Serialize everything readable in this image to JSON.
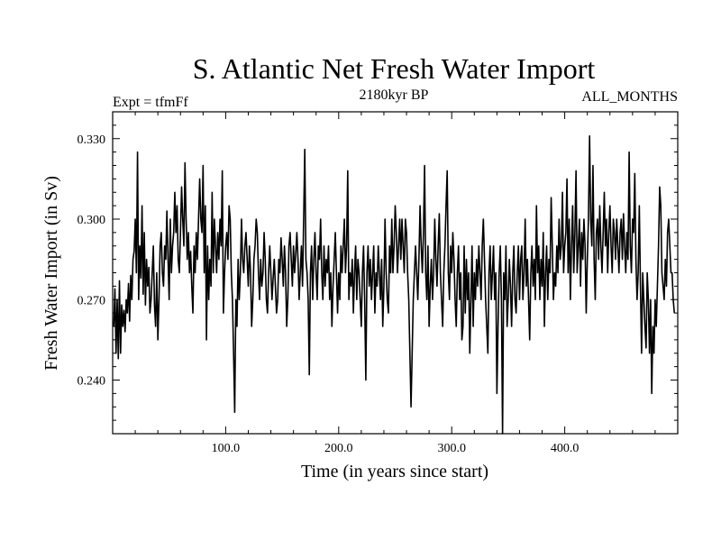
{
  "chart_data": {
    "type": "line",
    "title": "S. Atlantic Net Fresh Water Import",
    "subtitle_left": "Expt = tfmFf",
    "subtitle_center": "2180kyr BP",
    "subtitle_right": "ALL_MONTHS",
    "xlabel": "Time (in years since start)",
    "ylabel": "Fresh Water Import (in Sv)",
    "xlim": [
      0,
      500
    ],
    "ylim": [
      0.22,
      0.34
    ],
    "x_ticks": [
      100,
      200,
      300,
      400
    ],
    "x_tick_labels": [
      "100.0",
      "200.0",
      "300.0",
      "400.0"
    ],
    "y_ticks": [
      0.24,
      0.27,
      0.3,
      0.33
    ],
    "y_tick_labels": [
      "0.240",
      "0.270",
      "0.300",
      "0.330"
    ],
    "grid": false,
    "series": [
      {
        "name": "Net Fresh Water Import",
        "color": "#000000",
        "x_start": 1,
        "x_step": 1,
        "values": [
          0.26,
          0.274,
          0.25,
          0.27,
          0.248,
          0.277,
          0.25,
          0.268,
          0.26,
          0.266,
          0.258,
          0.27,
          0.265,
          0.276,
          0.262,
          0.279,
          0.27,
          0.285,
          0.288,
          0.3,
          0.28,
          0.325,
          0.27,
          0.29,
          0.278,
          0.305,
          0.272,
          0.295,
          0.268,
          0.285,
          0.275,
          0.282,
          0.265,
          0.27,
          0.28,
          0.29,
          0.268,
          0.26,
          0.28,
          0.255,
          0.27,
          0.29,
          0.295,
          0.28,
          0.275,
          0.29,
          0.285,
          0.303,
          0.285,
          0.27,
          0.3,
          0.28,
          0.29,
          0.295,
          0.31,
          0.295,
          0.305,
          0.285,
          0.28,
          0.295,
          0.312,
          0.3,
          0.29,
          0.321,
          0.3,
          0.285,
          0.295,
          0.28,
          0.288,
          0.275,
          0.265,
          0.29,
          0.28,
          0.295,
          0.285,
          0.3,
          0.315,
          0.3,
          0.295,
          0.32,
          0.28,
          0.305,
          0.255,
          0.29,
          0.27,
          0.285,
          0.275,
          0.31,
          0.28,
          0.3,
          0.29,
          0.28,
          0.295,
          0.285,
          0.3,
          0.29,
          0.318,
          0.265,
          0.28,
          0.29,
          0.295,
          0.285,
          0.305,
          0.3,
          0.28,
          0.27,
          0.25,
          0.228,
          0.27,
          0.26,
          0.285,
          0.27,
          0.28,
          0.3,
          0.285,
          0.28,
          0.29,
          0.295,
          0.285,
          0.275,
          0.29,
          0.28,
          0.26,
          0.27,
          0.285,
          0.29,
          0.3,
          0.295,
          0.28,
          0.27,
          0.285,
          0.275,
          0.28,
          0.295,
          0.285,
          0.27,
          0.265,
          0.28,
          0.29,
          0.28,
          0.27,
          0.278,
          0.285,
          0.275,
          0.265,
          0.27,
          0.285,
          0.28,
          0.293,
          0.285,
          0.275,
          0.29,
          0.28,
          0.26,
          0.27,
          0.29,
          0.295,
          0.285,
          0.275,
          0.29,
          0.28,
          0.287,
          0.295,
          0.285,
          0.27,
          0.28,
          0.29,
          0.275,
          0.3,
          0.326,
          0.285,
          0.28,
          0.27,
          0.242,
          0.28,
          0.29,
          0.27,
          0.285,
          0.295,
          0.28,
          0.27,
          0.29,
          0.285,
          0.3,
          0.28,
          0.27,
          0.29,
          0.275,
          0.285,
          0.28,
          0.29,
          0.27,
          0.28,
          0.26,
          0.275,
          0.285,
          0.295,
          0.28,
          0.265,
          0.28,
          0.27,
          0.29,
          0.28,
          0.29,
          0.3,
          0.28,
          0.29,
          0.318,
          0.27,
          0.28,
          0.275,
          0.285,
          0.265,
          0.28,
          0.29,
          0.27,
          0.285,
          0.28,
          0.27,
          0.26,
          0.28,
          0.29,
          0.27,
          0.24,
          0.28,
          0.29,
          0.275,
          0.285,
          0.27,
          0.28,
          0.29,
          0.265,
          0.28,
          0.275,
          0.29,
          0.28,
          0.27,
          0.285,
          0.26,
          0.275,
          0.3,
          0.28,
          0.27,
          0.265,
          0.29,
          0.28,
          0.3,
          0.28,
          0.29,
          0.305,
          0.295,
          0.28,
          0.29,
          0.3,
          0.285,
          0.3,
          0.29,
          0.28,
          0.3,
          0.295,
          0.28,
          0.27,
          0.25,
          0.23,
          0.25,
          0.27,
          0.28,
          0.29,
          0.28,
          0.27,
          0.285,
          0.305,
          0.29,
          0.28,
          0.295,
          0.32,
          0.28,
          0.27,
          0.29,
          0.26,
          0.275,
          0.285,
          0.27,
          0.28,
          0.3,
          0.285,
          0.275,
          0.29,
          0.302,
          0.28,
          0.27,
          0.26,
          0.28,
          0.29,
          0.305,
          0.318,
          0.28,
          0.27,
          0.29,
          0.28,
          0.295,
          0.285,
          0.27,
          0.26,
          0.28,
          0.29,
          0.27,
          0.28,
          0.255,
          0.26,
          0.29,
          0.265,
          0.285,
          0.27,
          0.28,
          0.25,
          0.27,
          0.29,
          0.26,
          0.28,
          0.27,
          0.285,
          0.275,
          0.29,
          0.28,
          0.27,
          0.29,
          0.3,
          0.285,
          0.27,
          0.26,
          0.25,
          0.28,
          0.29,
          0.27,
          0.28,
          0.29,
          0.27,
          0.28,
          0.235,
          0.26,
          0.28,
          0.29,
          0.27,
          0.22,
          0.28,
          0.27,
          0.29,
          0.26,
          0.27,
          0.285,
          0.275,
          0.26,
          0.28,
          0.29,
          0.27,
          0.265,
          0.28,
          0.29,
          0.27,
          0.285,
          0.29,
          0.27,
          0.28,
          0.3,
          0.275,
          0.285,
          0.27,
          0.255,
          0.28,
          0.29,
          0.275,
          0.285,
          0.27,
          0.305,
          0.28,
          0.29,
          0.27,
          0.285,
          0.275,
          0.295,
          0.26,
          0.28,
          0.29,
          0.27,
          0.285,
          0.28,
          0.308,
          0.29,
          0.27,
          0.28,
          0.275,
          0.29,
          0.28,
          0.3,
          0.285,
          0.29,
          0.31,
          0.28,
          0.29,
          0.295,
          0.315,
          0.28,
          0.3,
          0.27,
          0.29,
          0.305,
          0.28,
          0.295,
          0.318,
          0.28,
          0.29,
          0.3,
          0.275,
          0.295,
          0.285,
          0.3,
          0.29,
          0.265,
          0.285,
          0.3,
          0.331,
          0.3,
          0.29,
          0.32,
          0.285,
          0.27,
          0.295,
          0.3,
          0.285,
          0.305,
          0.29,
          0.28,
          0.295,
          0.31,
          0.29,
          0.3,
          0.28,
          0.295,
          0.305,
          0.29,
          0.28,
          0.3,
          0.295,
          0.285,
          0.3,
          0.29,
          0.28,
          0.295,
          0.3,
          0.285,
          0.302,
          0.29,
          0.28,
          0.295,
          0.285,
          0.325,
          0.29,
          0.28,
          0.3,
          0.295,
          0.317,
          0.285,
          0.27,
          0.28,
          0.305,
          0.275,
          0.25,
          0.28,
          0.27,
          0.26,
          0.252,
          0.28,
          0.27,
          0.25,
          0.27,
          0.235,
          0.26,
          0.25,
          0.27,
          0.26,
          0.275,
          0.29,
          0.312,
          0.305,
          0.28,
          0.275,
          0.27,
          0.285,
          0.275,
          0.295,
          0.3,
          0.29,
          0.28,
          0.28,
          0.27,
          0.265
        ]
      }
    ]
  }
}
